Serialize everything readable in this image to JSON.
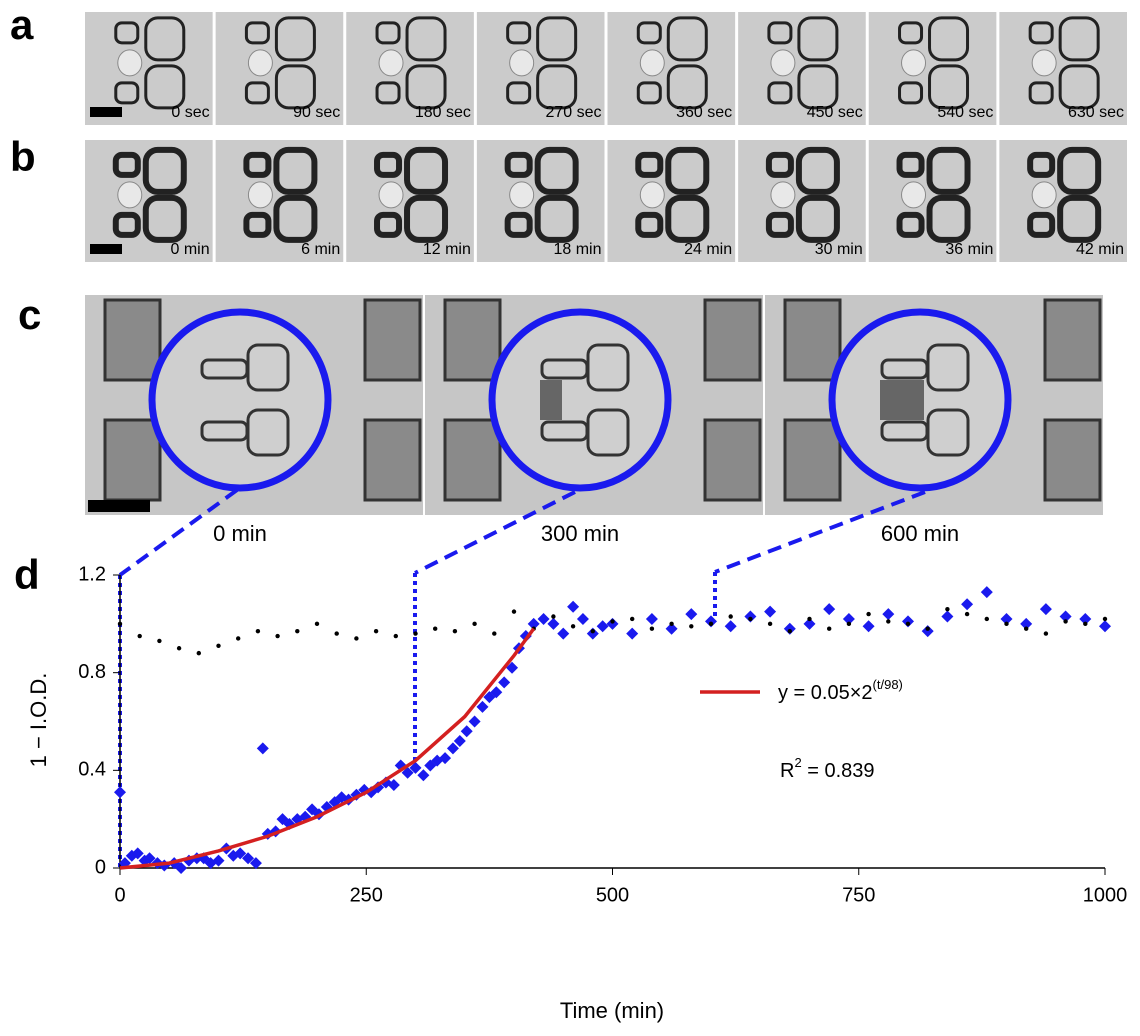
{
  "panels": {
    "a": {
      "label": "a",
      "frames": [
        "0 sec",
        "90 sec",
        "180 sec",
        "270 sec",
        "360 sec",
        "450 sec",
        "540 sec",
        "630 sec"
      ]
    },
    "b": {
      "label": "b",
      "frames": [
        "0 min",
        "6 min",
        "12 min",
        "18 min",
        "24 min",
        "30 min",
        "36 min",
        "42 min"
      ]
    },
    "c": {
      "label": "c",
      "frames": [
        "0 min",
        "300 min",
        "600 min"
      ]
    },
    "d": {
      "label": "d"
    }
  },
  "chart_data": {
    "type": "scatter",
    "xlabel": "Time (min)",
    "ylabel": "1 − I.O.D.",
    "xlim": [
      0,
      1000
    ],
    "ylim": [
      0,
      1.2
    ],
    "xticks": [
      0,
      250,
      500,
      750,
      1000
    ],
    "yticks": [
      0,
      0.4,
      0.8,
      1.2
    ],
    "series": [
      {
        "color": "#1a1aee",
        "marker": "diamond",
        "x": [
          0,
          5,
          12,
          18,
          25,
          30,
          38,
          45,
          55,
          62,
          70,
          78,
          85,
          92,
          100,
          108,
          115,
          122,
          130,
          138,
          145,
          150,
          158,
          165,
          172,
          180,
          188,
          195,
          202,
          210,
          218,
          225,
          232,
          240,
          248,
          255,
          262,
          270,
          278,
          285,
          292,
          300,
          308,
          315,
          322,
          330,
          338,
          345,
          352,
          360,
          368,
          375,
          382,
          390,
          398,
          405,
          412,
          420,
          430,
          440,
          450,
          460,
          470,
          480,
          490,
          500,
          520,
          540,
          560,
          580,
          600,
          620,
          640,
          660,
          680,
          700,
          720,
          740,
          760,
          780,
          800,
          820,
          840,
          860,
          880,
          900,
          920,
          940,
          960,
          980,
          1000
        ],
        "values": [
          0.31,
          0.02,
          0.05,
          0.06,
          0.03,
          0.04,
          0.02,
          0.01,
          0.02,
          0.0,
          0.03,
          0.04,
          0.04,
          0.02,
          0.03,
          0.08,
          0.05,
          0.06,
          0.04,
          0.02,
          0.49,
          0.14,
          0.15,
          0.2,
          0.18,
          0.2,
          0.21,
          0.24,
          0.22,
          0.25,
          0.27,
          0.29,
          0.28,
          0.3,
          0.32,
          0.31,
          0.33,
          0.35,
          0.34,
          0.42,
          0.39,
          0.41,
          0.38,
          0.42,
          0.44,
          0.45,
          0.49,
          0.52,
          0.56,
          0.6,
          0.66,
          0.7,
          0.72,
          0.76,
          0.82,
          0.9,
          0.95,
          1.0,
          1.02,
          1.0,
          0.96,
          1.07,
          1.02,
          0.96,
          0.99,
          1.0,
          0.96,
          1.02,
          0.98,
          1.04,
          1.01,
          0.99,
          1.03,
          1.05,
          0.98,
          1.0,
          1.06,
          1.02,
          0.99,
          1.04,
          1.01,
          0.97,
          1.03,
          1.08,
          1.13,
          1.02,
          1.0,
          1.06,
          1.03,
          1.02,
          0.99
        ]
      },
      {
        "color": "#000000",
        "marker": "dot",
        "x": [
          0,
          20,
          40,
          60,
          80,
          100,
          120,
          140,
          160,
          180,
          200,
          220,
          240,
          260,
          280,
          300,
          320,
          340,
          360,
          380,
          400,
          420,
          440,
          460,
          480,
          500,
          520,
          540,
          560,
          580,
          600,
          620,
          640,
          660,
          680,
          700,
          720,
          740,
          760,
          780,
          800,
          820,
          840,
          860,
          880,
          900,
          920,
          940,
          960,
          980,
          1000
        ],
        "values": [
          1.0,
          0.95,
          0.93,
          0.9,
          0.88,
          0.91,
          0.94,
          0.97,
          0.95,
          0.97,
          1.0,
          0.96,
          0.94,
          0.97,
          0.95,
          0.96,
          0.98,
          0.97,
          1.0,
          0.96,
          1.05,
          0.98,
          1.03,
          0.99,
          0.97,
          1.01,
          1.02,
          0.98,
          1.0,
          0.99,
          1.0,
          1.03,
          1.02,
          1.0,
          0.97,
          1.02,
          0.98,
          1.0,
          1.04,
          1.01,
          1.0,
          0.98,
          1.06,
          1.04,
          1.02,
          1.0,
          0.98,
          0.96,
          1.01,
          1.0,
          1.02
        ]
      },
      {
        "name": "y = 0.05×2",
        "name_sup": "(t/98)",
        "color": "#d42020",
        "marker": "line",
        "x": [
          0,
          50,
          100,
          150,
          200,
          250,
          300,
          350,
          400,
          420
        ],
        "values": [
          0,
          0.02,
          0.07,
          0.13,
          0.21,
          0.31,
          0.44,
          0.62,
          0.87,
          0.98
        ]
      }
    ],
    "annotation": {
      "text": "R",
      "sup": "2",
      "rest": " = 0.839"
    }
  }
}
